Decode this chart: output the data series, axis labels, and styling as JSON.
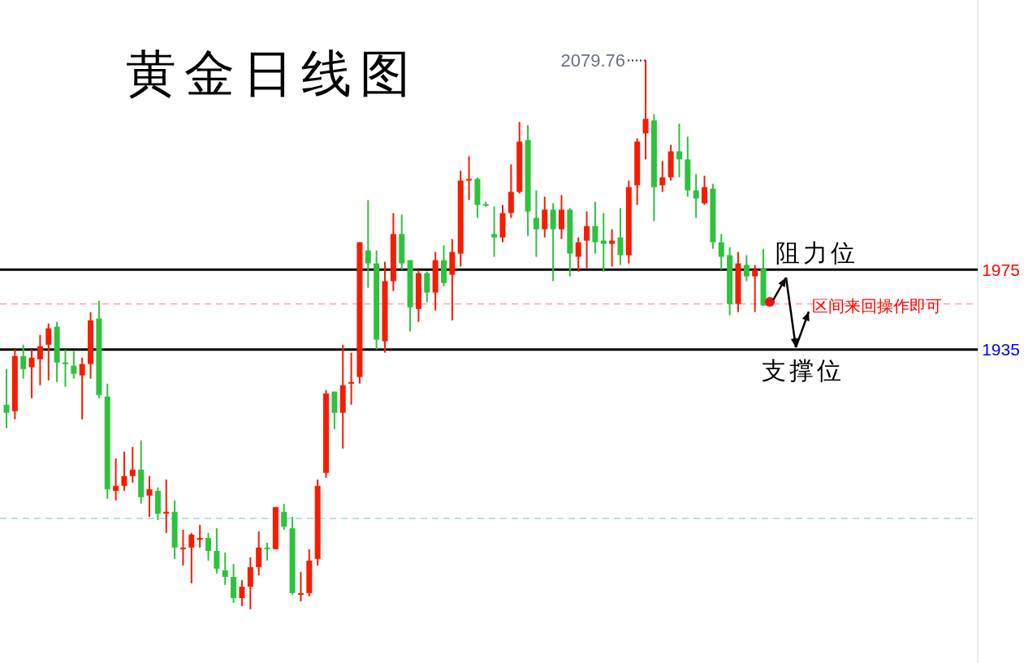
{
  "chart_data": {
    "type": "candlestick",
    "title": "黄金日线图",
    "categories": [
      null,
      null,
      null,
      null,
      null,
      null,
      null,
      null,
      null,
      null,
      null,
      null,
      null,
      null,
      null,
      null,
      null,
      null,
      null,
      null,
      null,
      null,
      null,
      null,
      null,
      null,
      null,
      null,
      null,
      null,
      null,
      null,
      null,
      null,
      null,
      null,
      null,
      null,
      null,
      null,
      null,
      null,
      null,
      null,
      null,
      null,
      null,
      null,
      null,
      null,
      null,
      null,
      null,
      null,
      null,
      null,
      null,
      null,
      null,
      null,
      null,
      null,
      null,
      null,
      null,
      null,
      null,
      null,
      null,
      null,
      null,
      null,
      null,
      null,
      null,
      null,
      null,
      null,
      null,
      null,
      null,
      null,
      null,
      null,
      null,
      null,
      null,
      null,
      null,
      null,
      null,
      null,
      null,
      null,
      null,
      null,
      null,
      null,
      null,
      null,
      null,
      null,
      null,
      null,
      null,
      null,
      null,
      null,
      null,
      null,
      null,
      null,
      null,
      null,
      null,
      null
    ],
    "ohlc": [
      [
        1907.3,
        1925.2,
        1895.6,
        1903.3
      ],
      [
        1904.1,
        1935.0,
        1900.0,
        1931.7
      ],
      [
        1931.7,
        1937.4,
        1920.4,
        1925.2
      ],
      [
        1926.1,
        1935.0,
        1910.6,
        1930.9
      ],
      [
        1930.1,
        1942.3,
        1917.1,
        1936.6
      ],
      [
        1937.4,
        1948.0,
        1919.5,
        1945.6
      ],
      [
        1946.4,
        1948.8,
        1918.7,
        1928.5
      ],
      [
        1928.5,
        1935.0,
        1916.3,
        1927.7
      ],
      [
        1926.9,
        1934.2,
        1920.4,
        1922.8
      ],
      [
        1922.0,
        1930.9,
        1900.0,
        1927.7
      ],
      [
        1927.7,
        1953.7,
        1920.4,
        1949.6
      ],
      [
        1950.5,
        1959.4,
        1910.6,
        1912.2
      ],
      [
        1911.4,
        1917.9,
        1860.2,
        1865.0
      ],
      [
        1864.2,
        1880.5,
        1859.4,
        1866.7
      ],
      [
        1866.7,
        1883.8,
        1864.2,
        1871.6
      ],
      [
        1871.6,
        1886.2,
        1868.3,
        1874.8
      ],
      [
        1874.8,
        1889.5,
        1857.7,
        1861.0
      ],
      [
        1861.8,
        1871.6,
        1851.2,
        1865.0
      ],
      [
        1864.2,
        1865.9,
        1849.6,
        1852.8
      ],
      [
        1852.8,
        1869.9,
        1843.1,
        1853.7
      ],
      [
        1853.7,
        1859.4,
        1830.1,
        1835.8
      ],
      [
        1835.0,
        1844.7,
        1826.8,
        1835.8
      ],
      [
        1835.8,
        1843.1,
        1817.9,
        1842.3
      ],
      [
        1839.8,
        1847.2,
        1835.8,
        1840.6
      ],
      [
        1840.6,
        1843.1,
        1829.3,
        1834.1
      ],
      [
        1834.1,
        1845.5,
        1822.8,
        1825.2
      ],
      [
        1824.4,
        1833.3,
        1817.1,
        1821.1
      ],
      [
        1821.1,
        1827.6,
        1808.1,
        1810.5
      ],
      [
        1810.5,
        1819.5,
        1806.5,
        1816.2
      ],
      [
        1816.2,
        1830.9,
        1804.9,
        1826.0
      ],
      [
        1826.0,
        1843.9,
        1821.9,
        1835.8
      ],
      [
        1835.8,
        1838.2,
        1829.3,
        1835.0
      ],
      [
        1835.0,
        1856.1,
        1835.0,
        1856.1
      ],
      [
        1853.7,
        1857.7,
        1844.7,
        1846.3
      ],
      [
        1845.5,
        1851.2,
        1812.2,
        1813.0
      ],
      [
        1812.2,
        1823.6,
        1808.9,
        1813.0
      ],
      [
        1813.0,
        1835.0,
        1811.4,
        1829.3
      ],
      [
        1830.1,
        1869.9,
        1826.8,
        1866.7
      ],
      [
        1873.2,
        1914.7,
        1870.7,
        1913.0
      ],
      [
        1913.9,
        1913.9,
        1895.1,
        1903.3
      ],
      [
        1903.3,
        1937.4,
        1885.4,
        1917.1
      ],
      [
        1917.9,
        1933.4,
        1907.3,
        1918.7
      ],
      [
        1921.2,
        1988.7,
        1917.9,
        1988.7
      ],
      [
        1984.6,
        2009.8,
        1965.9,
        1978.1
      ],
      [
        1978.1,
        1984.6,
        1935.0,
        1939.9
      ],
      [
        1939.1,
        1978.9,
        1933.4,
        1969.2
      ],
      [
        1969.2,
        2003.3,
        1964.3,
        1992.8
      ],
      [
        1992.8,
        2002.5,
        1974.9,
        1978.1
      ],
      [
        1979.7,
        1979.7,
        1944.0,
        1956.1
      ],
      [
        1955.3,
        1974.9,
        1948.8,
        1973.2
      ],
      [
        1973.2,
        1974.0,
        1958.6,
        1963.5
      ],
      [
        1963.5,
        1983.8,
        1954.5,
        1979.7
      ],
      [
        1979.7,
        1987.1,
        1966.7,
        1968.3
      ],
      [
        1972.4,
        1990.3,
        1949.6,
        1983.8
      ],
      [
        1983.0,
        2024.5,
        1976.5,
        2019.6
      ],
      [
        2019.6,
        2031.8,
        2009.8,
        2020.4
      ],
      [
        2020.4,
        2021.2,
        2000.9,
        2007.4
      ],
      [
        2007.8,
        2009.0,
        2006.6,
        2007.0
      ],
      [
        1992.8,
        2006.6,
        1981.4,
        1991.1
      ],
      [
        1991.1,
        2007.4,
        1988.7,
        2003.3
      ],
      [
        2003.3,
        2027.7,
        2000.9,
        2013.9
      ],
      [
        2013.9,
        2048.9,
        2013.1,
        2039.1
      ],
      [
        2039.9,
        2047.3,
        1991.9,
        2004.1
      ],
      [
        2000.9,
        2014.7,
        1981.4,
        1995.2
      ],
      [
        1995.2,
        2011.5,
        1991.1,
        2005.0
      ],
      [
        2005.0,
        2008.2,
        1969.2,
        1995.2
      ],
      [
        1995.2,
        2012.3,
        1990.3,
        2005.0
      ],
      [
        2005.0,
        2005.8,
        1971.6,
        1983.0
      ],
      [
        1981.4,
        1991.1,
        1974.0,
        1988.7
      ],
      [
        1989.5,
        2004.1,
        1975.7,
        1996.8
      ],
      [
        1996.8,
        2009.0,
        1983.0,
        1988.7
      ],
      [
        1989.5,
        2003.3,
        1974.0,
        1987.9
      ],
      [
        1987.9,
        1995.2,
        1976.5,
        1989.5
      ],
      [
        1991.1,
        2005.8,
        1977.3,
        1982.2
      ],
      [
        1982.2,
        2019.6,
        1978.1,
        2016.3
      ],
      [
        2017.2,
        2040.7,
        2007.4,
        2039.1
      ],
      [
        2043.2,
        2079.76,
        2030.2,
        2050.5
      ],
      [
        2049.7,
        2052.9,
        1999.3,
        2016.3
      ],
      [
        2017.2,
        2029.4,
        2013.9,
        2021.2
      ],
      [
        2021.2,
        2037.5,
        2019.6,
        2034.2
      ],
      [
        2034.2,
        2048.1,
        2021.2,
        2030.2
      ],
      [
        2030.2,
        2041.6,
        2011.5,
        2014.7
      ],
      [
        2014.7,
        2022.8,
        2000.9,
        2010.6
      ],
      [
        2008.2,
        2022.0,
        2007.4,
        2016.3
      ],
      [
        2015.5,
        2018.0,
        1985.4,
        1988.7
      ],
      [
        1988.7,
        1992.8,
        1974.9,
        1981.4
      ],
      [
        1982.2,
        1986.2,
        1952.1,
        1957.8
      ],
      [
        1957.8,
        1983.8,
        1953.7,
        1978.1
      ],
      [
        1977.3,
        1982.2,
        1969.2,
        1971.6
      ],
      [
        1971.6,
        1977.3,
        1953.7,
        1974.9
      ],
      [
        1975.7,
        1985.4,
        1957.0,
        1957.0
      ],
      null,
      null,
      null,
      null,
      null,
      null,
      null,
      null,
      null,
      null,
      null,
      null,
      null,
      null,
      null,
      null,
      null,
      null,
      null,
      null,
      null,
      null,
      null,
      null,
      null
    ],
    "ylim": [
      1778,
      2110
    ],
    "yticks": [
      1975,
      1935
    ],
    "ref_lines": [
      {
        "axis": "y",
        "value": 1975,
        "color": "#000000",
        "line_style": "solid"
      },
      {
        "axis": "y",
        "value": 1935,
        "color": "#000000",
        "line_style": "solid"
      },
      {
        "axis": "y",
        "value": 1957.8,
        "color": "#f2a3aa",
        "line_style": "dashed"
      },
      {
        "axis": "y",
        "value": 1850.4,
        "color": "#9fdcd0",
        "line_style": "dashed"
      }
    ],
    "annotations": [
      "2079.76",
      "阻力位",
      "支撑位",
      "区间来回操作即可"
    ]
  }
}
